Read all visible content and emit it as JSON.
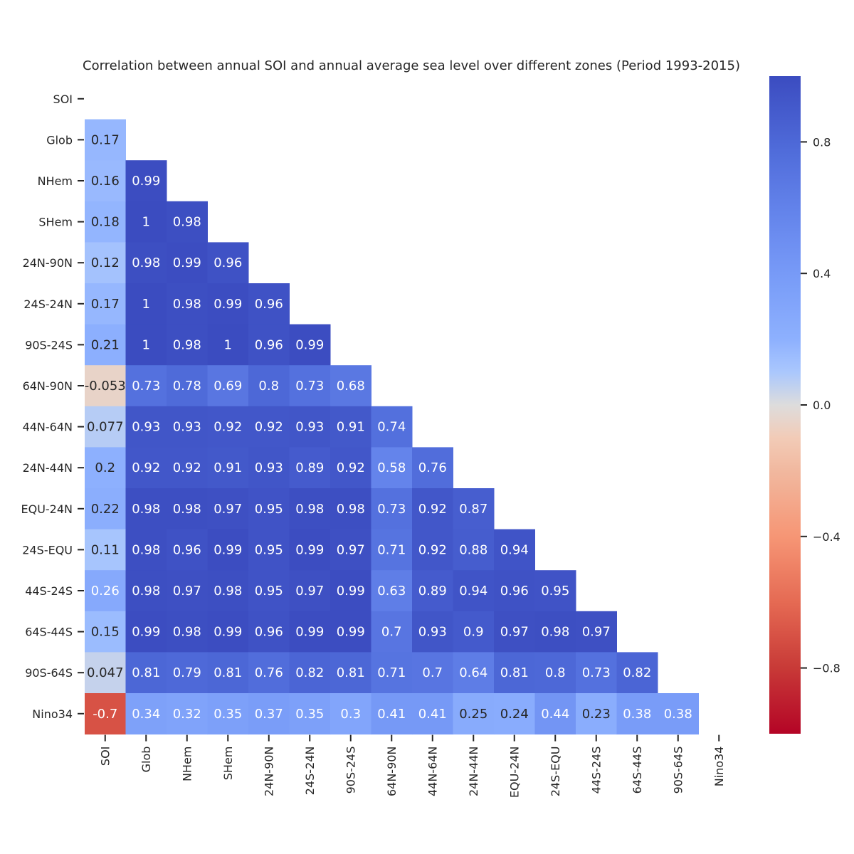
{
  "chart_data": {
    "type": "heatmap",
    "title": "Correlation between annual SOI and annual average sea level over different zones (Period 1993-2015)",
    "xlabel": "",
    "ylabel": "",
    "labels": [
      "SOI",
      "Glob",
      "NHem",
      "SHem",
      "24N-90N",
      "24S-24N",
      "90S-24S",
      "64N-90N",
      "44N-64N",
      "24N-44N",
      "EQU-24N",
      "24S-EQU",
      "44S-24S",
      "64S-44S",
      "90S-64S",
      "Nino34"
    ],
    "mask": "upper-triangle-including-diagonal",
    "matrix": [
      [],
      [
        0.17
      ],
      [
        0.16,
        0.99
      ],
      [
        0.18,
        1,
        0.98
      ],
      [
        0.12,
        0.98,
        0.99,
        0.96
      ],
      [
        0.17,
        1,
        0.98,
        0.99,
        0.96
      ],
      [
        0.21,
        1,
        0.98,
        1,
        0.96,
        0.99
      ],
      [
        -0.053,
        0.73,
        0.78,
        0.69,
        0.8,
        0.73,
        0.68
      ],
      [
        0.077,
        0.93,
        0.93,
        0.92,
        0.92,
        0.93,
        0.91,
        0.74
      ],
      [
        0.2,
        0.92,
        0.92,
        0.91,
        0.93,
        0.89,
        0.92,
        0.58,
        0.76
      ],
      [
        0.22,
        0.98,
        0.98,
        0.97,
        0.95,
        0.98,
        0.98,
        0.73,
        0.92,
        0.87
      ],
      [
        0.11,
        0.98,
        0.96,
        0.99,
        0.95,
        0.99,
        0.97,
        0.71,
        0.92,
        0.88,
        0.94
      ],
      [
        0.26,
        0.98,
        0.97,
        0.98,
        0.95,
        0.97,
        0.99,
        0.63,
        0.89,
        0.94,
        0.96,
        0.95
      ],
      [
        0.15,
        0.99,
        0.98,
        0.99,
        0.96,
        0.99,
        0.99,
        0.7,
        0.93,
        0.9,
        0.97,
        0.98,
        0.97
      ],
      [
        0.047,
        0.81,
        0.79,
        0.81,
        0.76,
        0.82,
        0.81,
        0.71,
        0.7,
        0.64,
        0.81,
        0.8,
        0.73,
        0.82
      ],
      [
        -0.7,
        0.34,
        0.32,
        0.35,
        0.37,
        0.35,
        0.3,
        0.41,
        0.41,
        0.25,
        0.24,
        0.44,
        0.23,
        0.38,
        0.38
      ]
    ],
    "colormap": "coolwarm",
    "vmin": -1,
    "vmax": 1,
    "colorbar": {
      "ticks": [
        0.8,
        0.4,
        0.0,
        -0.4,
        -0.8
      ],
      "tick_labels": [
        "0.8",
        "0.4",
        "0.0",
        "−0.4",
        "−0.8"
      ]
    },
    "annotation_colors": {
      "light": "#262626",
      "dark": "#ffffff"
    },
    "grid": false,
    "legend": "colorbar-right"
  }
}
